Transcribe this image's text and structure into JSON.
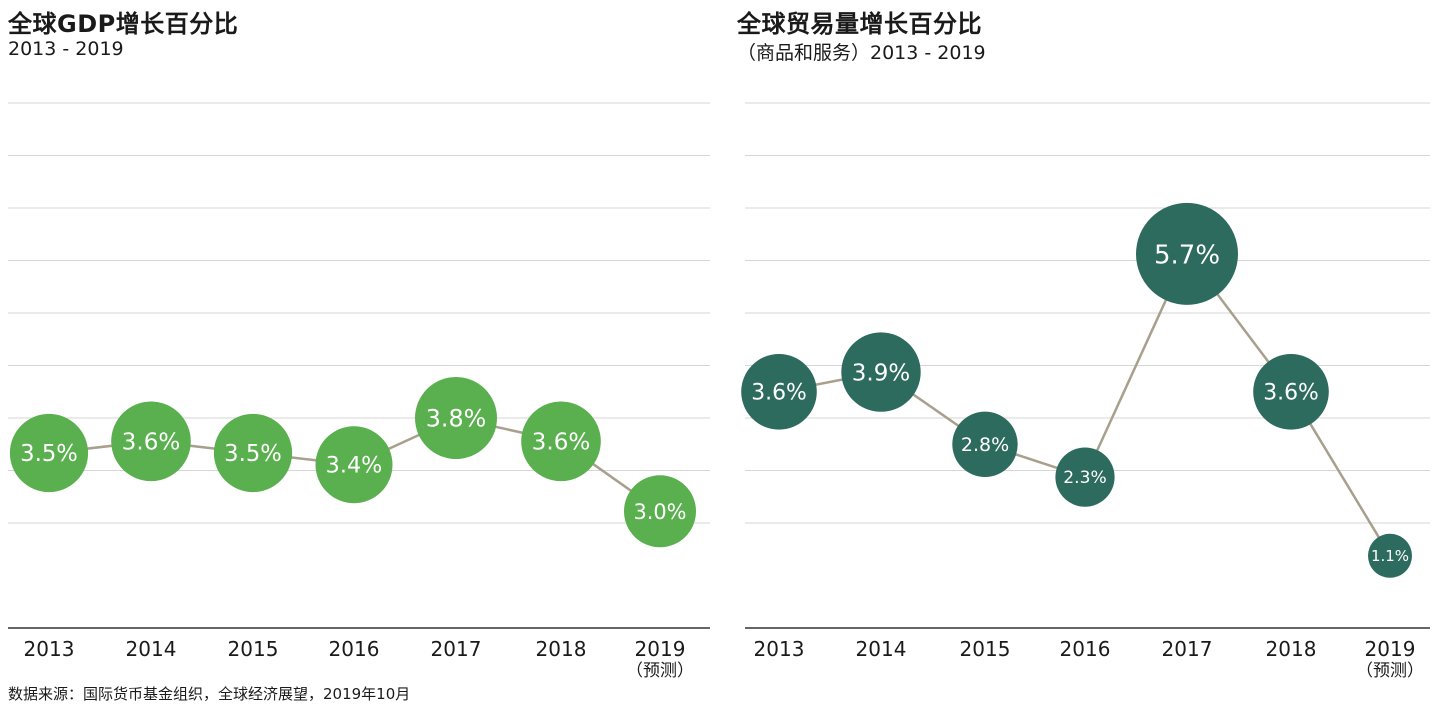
{
  "chart_data": [
    {
      "type": "bubble-line",
      "title": "全球GDP增长百分比",
      "subtitle": "2013 - 2019",
      "categories": [
        "2013",
        "2014",
        "2015",
        "2016",
        "2017",
        "2018",
        "2019"
      ],
      "category_notes": [
        "",
        "",
        "",
        "",
        "",
        "",
        "（预测）"
      ],
      "values": [
        3.5,
        3.6,
        3.5,
        3.4,
        3.8,
        3.6,
        3.0
      ],
      "labels": [
        "3.5%",
        "3.6%",
        "3.5%",
        "3.4%",
        "3.8%",
        "3.6%",
        "3.0%"
      ],
      "ylim": [
        2.0,
        6.5
      ],
      "grid": true,
      "colors": {
        "bubble": "#5aaf4e",
        "line": "#a89f8d",
        "grid": "#d6d6d6",
        "axis": "#333333",
        "label": "#ffffff"
      }
    },
    {
      "type": "bubble-line",
      "title": "全球贸易量增长百分比",
      "subtitle": "（商品和服务）2013 - 2019",
      "categories": [
        "2013",
        "2014",
        "2015",
        "2016",
        "2017",
        "2018",
        "2019"
      ],
      "category_notes": [
        "",
        "",
        "",
        "",
        "",
        "",
        "（预测）"
      ],
      "values": [
        3.6,
        3.9,
        2.8,
        2.3,
        5.7,
        3.6,
        1.1
      ],
      "labels": [
        "3.6%",
        "3.9%",
        "2.8%",
        "2.3%",
        "5.7%",
        "3.6%",
        "1.1%"
      ],
      "ylim": [
        0.0,
        8.0
      ],
      "grid": true,
      "colors": {
        "bubble": "#2d6b5f",
        "line": "#a89f8d",
        "grid": "#d6d6d6",
        "axis": "#333333",
        "label": "#ffffff"
      }
    }
  ],
  "source": "数据来源：国际货币基金组织，全球经济展望，2019年10月"
}
